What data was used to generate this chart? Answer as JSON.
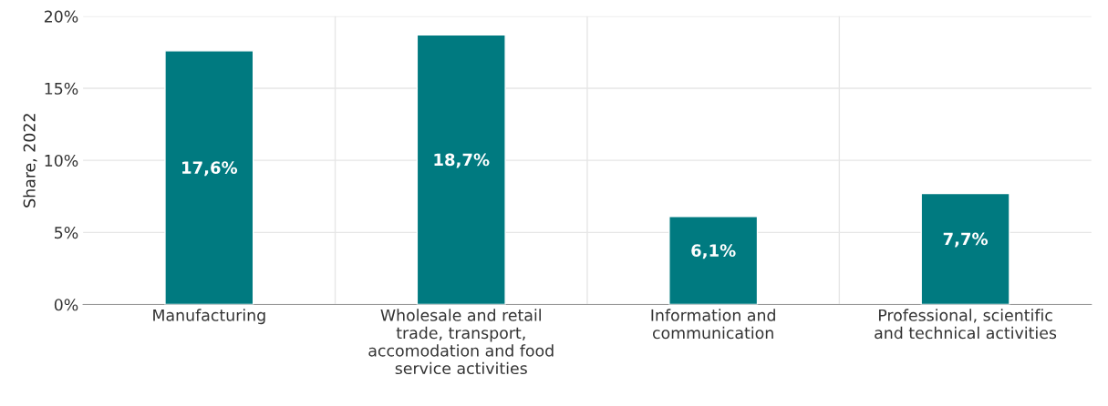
{
  "chart_data": {
    "type": "bar",
    "ylabel": "Share, 2022",
    "categories": [
      "Manufacturing",
      "Wholesale and retail\ntrade, transport,\naccomodation and food\nservice activities",
      "Information and\ncommunication",
      "Professional, scientific\nand technical activities"
    ],
    "values": [
      17.6,
      18.7,
      6.1,
      7.7
    ],
    "value_labels": [
      "17,6%",
      "18,7%",
      "6,1%",
      "7,7%"
    ],
    "color": "#007a80",
    "ylim": [
      0,
      20
    ],
    "yticks": [
      {
        "value": 0,
        "label": "0%"
      },
      {
        "value": 5,
        "label": "5%"
      },
      {
        "value": 10,
        "label": "10%"
      },
      {
        "value": 15,
        "label": "15%"
      },
      {
        "value": 20,
        "label": "20%"
      }
    ],
    "grid": true
  }
}
